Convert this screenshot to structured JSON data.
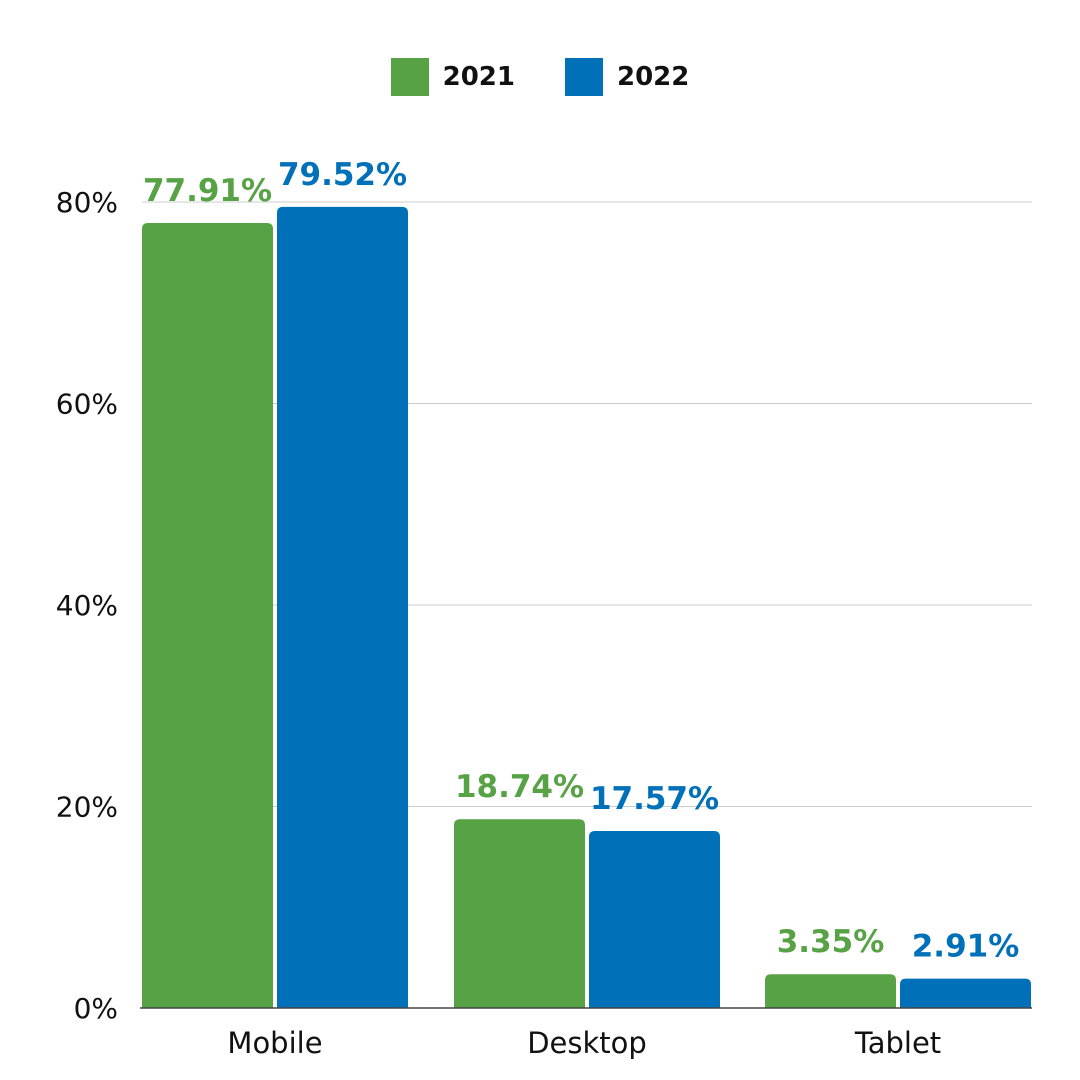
{
  "chart_data": {
    "type": "bar",
    "categories": [
      "Mobile",
      "Desktop",
      "Tablet"
    ],
    "series": [
      {
        "name": "2021",
        "color": "#56a244",
        "values": [
          77.91,
          18.74,
          3.35
        ],
        "labels": [
          "77.91%",
          "18.74%",
          "3.35%"
        ]
      },
      {
        "name": "2022",
        "color": "#0071b8",
        "values": [
          79.52,
          17.57,
          2.91
        ],
        "labels": [
          "79.52%",
          "17.57%",
          "2.91%"
        ]
      }
    ],
    "ylim": [
      0,
      80
    ],
    "yticks": [
      0,
      20,
      40,
      60,
      80
    ],
    "ytick_labels": [
      "0%",
      "20%",
      "40%",
      "60%",
      "80%"
    ],
    "grid": true,
    "gridline_color": "#cccccc",
    "legend_position": "top-center"
  }
}
